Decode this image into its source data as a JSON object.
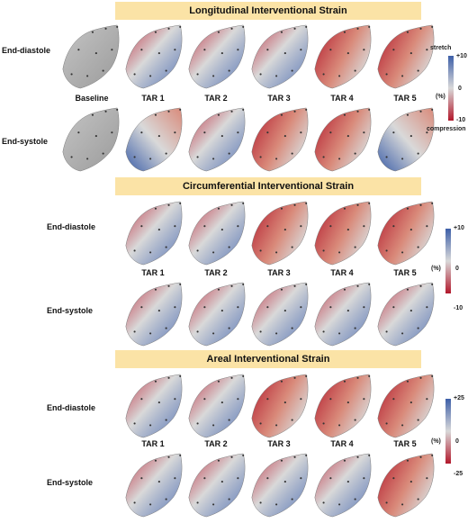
{
  "panels": [
    {
      "title": "Longitudinal Interventional Strain",
      "row_labels": [
        "End-diastole",
        "End-systole"
      ],
      "column_labels": [
        "Baseline",
        "TAR 1",
        "TAR 2",
        "TAR 3",
        "TAR 4",
        "TAR 5"
      ],
      "scale": {
        "max_label": "+10",
        "mid_label": "0",
        "min_label": "-10",
        "unit": "(%)",
        "top_word": "stretch",
        "bottom_word": "compression"
      }
    },
    {
      "title": "Circumferential Interventional Strain",
      "row_labels": [
        "End-diastole",
        "End-systole"
      ],
      "column_labels": [
        "TAR 1",
        "TAR 2",
        "TAR 3",
        "TAR 4",
        "TAR 5"
      ],
      "scale": {
        "max_label": "+10",
        "mid_label": "0",
        "min_label": "-10",
        "unit": "(%)"
      }
    },
    {
      "title": "Areal Interventional Strain",
      "row_labels": [
        "End-diastole",
        "End-systole"
      ],
      "column_labels": [
        "TAR 1",
        "TAR 2",
        "TAR 3",
        "TAR 4",
        "TAR 5"
      ],
      "scale": {
        "max_label": "+25",
        "mid_label": "0",
        "min_label": "-25",
        "unit": "(%)"
      }
    }
  ],
  "colors": {
    "banner": "#fbe3a6",
    "stretch": "#3d5fa8",
    "neutral": "#d9d9d9",
    "compression": "#b2182b",
    "baseline": "#a9a9a9"
  }
}
